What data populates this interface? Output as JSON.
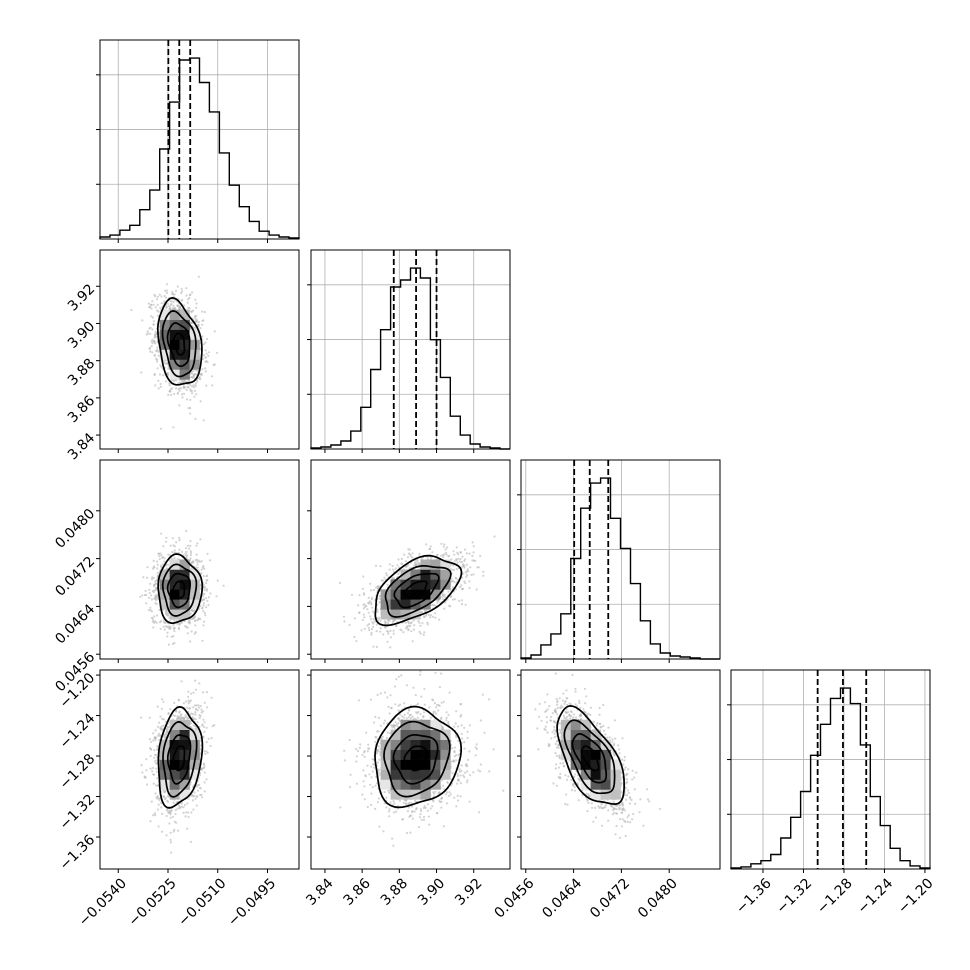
{
  "chart_data": {
    "type": "corner",
    "title": "",
    "parameters": [
      {
        "label": "",
        "range": [
          -0.05455,
          -0.04855
        ],
        "ticks": [
          -0.054,
          -0.0525,
          -0.051,
          -0.0495
        ],
        "tick_labels": [
          "−0.0540",
          "−0.0525",
          "−0.0510",
          "−0.0495"
        ],
        "quantiles": [
          -0.05249,
          -0.05216,
          -0.05183
        ],
        "center": -0.05216,
        "sigma": 0.00033
      },
      {
        "label": "",
        "range": [
          3.8325,
          3.9395
        ],
        "ticks": [
          3.84,
          3.86,
          3.88,
          3.9,
          3.92
        ],
        "tick_labels": [
          "3.84",
          "3.86",
          "3.88",
          "3.90",
          "3.92"
        ],
        "quantiles": [
          3.877,
          3.889,
          3.9
        ],
        "center": 3.889,
        "sigma": 0.0115
      },
      {
        "label": "",
        "range": [
          0.04552,
          0.04885
        ],
        "ticks": [
          0.0456,
          0.0464,
          0.0472,
          0.048
        ],
        "tick_labels": [
          "0.0456",
          "0.0464",
          "0.0472",
          "0.0480"
        ],
        "quantiles": [
          0.04641,
          0.04667,
          0.04698
        ],
        "center": 0.04668,
        "sigma": 0.00028
      },
      {
        "label": "",
        "range": [
          -1.3916,
          -1.195
        ],
        "ticks": [
          -1.36,
          -1.32,
          -1.28,
          -1.24,
          -1.2
        ],
        "tick_labels": [
          "−1.36",
          "−1.32",
          "−1.28",
          "−1.24",
          "−1.20"
        ],
        "quantiles": [
          -1.306,
          -1.281,
          -1.258
        ],
        "center": -1.282,
        "sigma": 0.024
      }
    ],
    "histograms": [
      [
        2,
        4,
        9,
        14,
        30,
        50,
        92,
        140,
        183,
        185,
        160,
        130,
        88,
        55,
        33,
        18,
        8,
        4,
        2,
        1
      ],
      [
        1,
        2,
        4,
        8,
        18,
        42,
        80,
        120,
        163,
        170,
        182,
        172,
        110,
        72,
        33,
        14,
        5,
        2,
        1,
        0
      ],
      [
        1,
        4,
        14,
        25,
        45,
        100,
        150,
        175,
        180,
        140,
        110,
        75,
        38,
        15,
        6,
        3,
        2,
        1,
        0,
        0
      ],
      [
        1,
        2,
        5,
        8,
        14,
        30,
        50,
        75,
        110,
        140,
        165,
        175,
        160,
        120,
        70,
        42,
        20,
        8,
        3,
        1
      ]
    ],
    "correlations": {
      "1-0": -0.25,
      "2-0": 0.0,
      "2-1": 0.5,
      "3-0": 0.18,
      "3-1": 0.1,
      "3-2": -0.6
    },
    "contour_levels_sigma": [
      0.5,
      1.0,
      1.5,
      2.0
    ],
    "grid": true
  }
}
